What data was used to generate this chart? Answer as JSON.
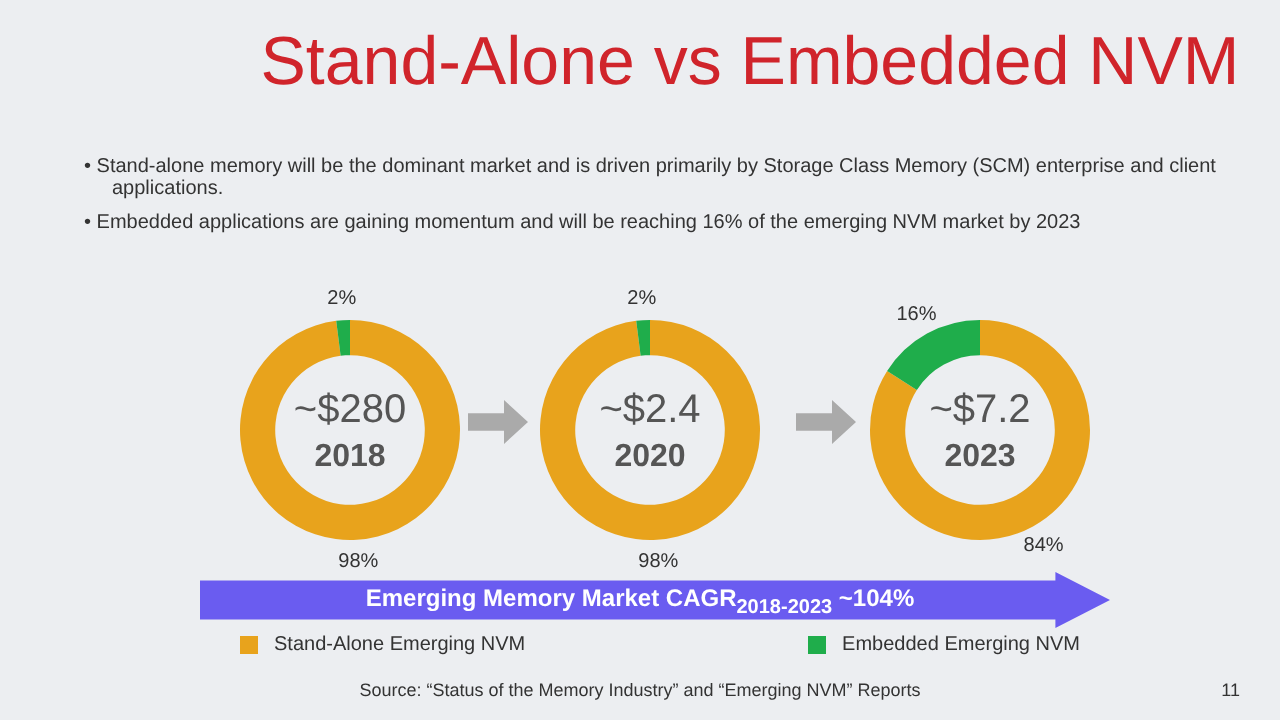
{
  "chart_data": [
    {
      "type": "donut",
      "title": "Stand-Alone vs Embedded NVM",
      "categories": [
        "Stand-Alone Emerging NVM",
        "Embedded Emerging NVM"
      ],
      "values": [
        98,
        2
      ],
      "colors": [
        "#e8a31c",
        "#1fad4b"
      ],
      "value_labels": [
        "98%",
        "2%"
      ],
      "legend": "bottom",
      "annotations": [
        "~$280",
        "2018",
        "•  Stand-alone memory will be the dominant market and is driven primarily by Storage Class Memory (SCM) enterprise and client applications.",
        "•  Embedded applications are gaining momentum and will be reaching 16% of the emerging NVM market by 2023"
      ]
    },
    {
      "type": "donut",
      "categories": [
        null,
        null
      ],
      "values": [
        98,
        2
      ],
      "colors": [
        "#e8a31c",
        "#1fad4b"
      ],
      "value_labels": [
        "98%",
        "2%"
      ],
      "annotations": [
        "~$2.4",
        "2020"
      ]
    },
    {
      "type": "donut",
      "categories": [
        null,
        null
      ],
      "values": [
        84,
        16
      ],
      "colors": [
        "#e8a31c",
        "#1fad4b"
      ],
      "value_labels": [
        "84%",
        "16%"
      ],
      "annotations": [
        "~$7.2",
        "2023",
        "Emerging Memory Market CAGR$_{2018-2023}$ ~104%",
        "Source: “Status of the Memory Industry” and “Emerging NVM” Reports",
        "11"
      ]
    }
  ]
}
